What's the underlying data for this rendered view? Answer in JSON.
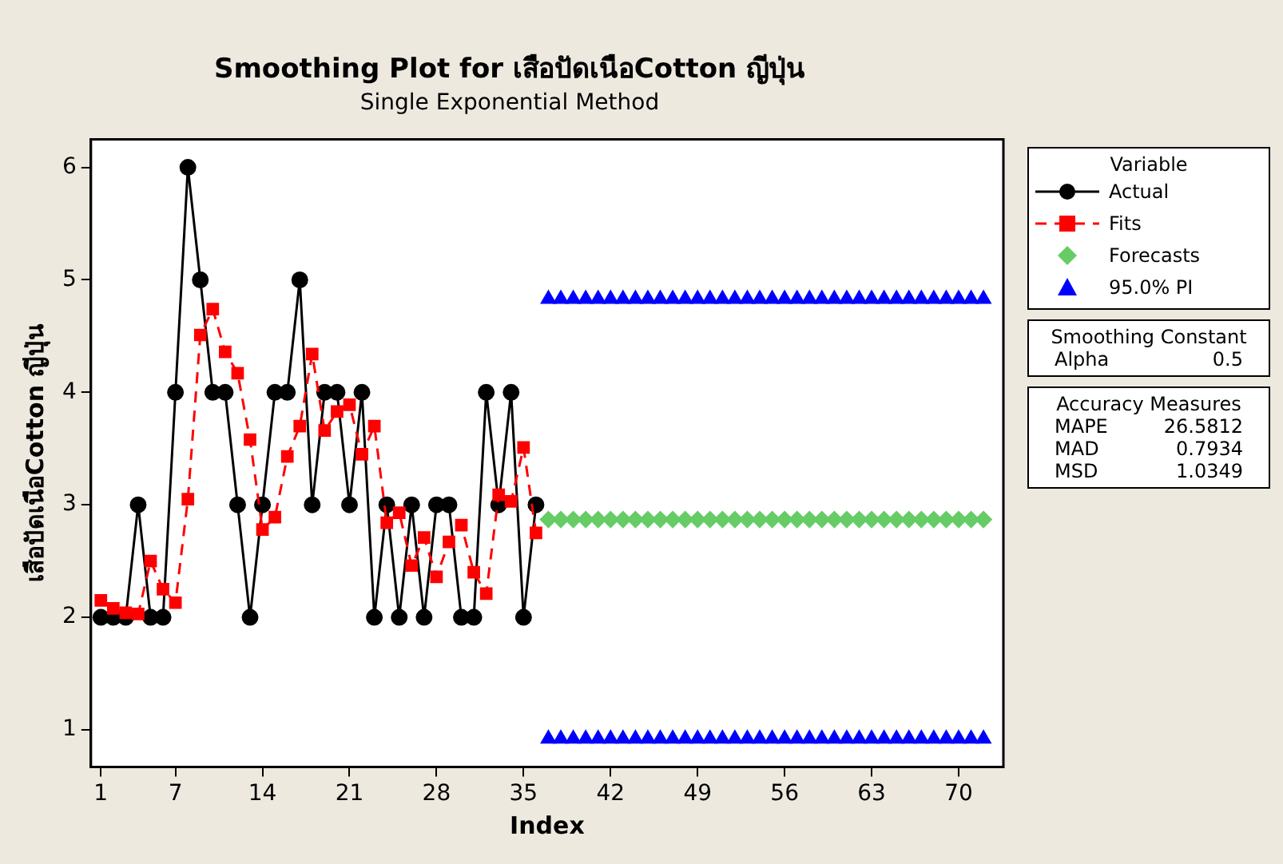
{
  "chart_data": {
    "type": "line",
    "title": "Smoothing Plot for เสือปัดเนือCotton ญีปุ่น",
    "subtitle": "Single Exponential Method",
    "xlabel": "Index",
    "ylabel": "เสือปัดเนือCotton ญีปุ่น",
    "legend_title": "Variable",
    "legend": "right",
    "grid": false,
    "xlim": [
      0.2,
      73.6
    ],
    "xticks": [
      1,
      7,
      14,
      21,
      28,
      35,
      42,
      49,
      56,
      63,
      70
    ],
    "ylim": [
      0.67,
      6.25
    ],
    "yticks": [
      1,
      2,
      3,
      4,
      5,
      6
    ],
    "annotations": [
      "Smoothing Constant\nAlpha\t0.5",
      "Accuracy Measures\nMAPE\t26.5812\nMAD\t0.7934\nMSD\t1.0349"
    ],
    "series": [
      {
        "name": "Actual",
        "color": "#000000",
        "marker": "circle",
        "line_style": "solid",
        "x": [
          1,
          2,
          3,
          4,
          5,
          6,
          7,
          8,
          9,
          10,
          11,
          12,
          13,
          14,
          15,
          16,
          17,
          18,
          19,
          20,
          21,
          22,
          23,
          24,
          25,
          26,
          27,
          28,
          29,
          30,
          31,
          32,
          33,
          34,
          35,
          36
        ],
        "values": [
          2,
          2,
          2,
          3,
          2,
          2,
          4,
          6,
          5,
          4,
          4,
          3,
          2,
          3,
          4,
          4,
          5,
          3,
          4,
          4,
          3,
          4,
          2,
          3,
          2,
          3,
          2,
          3,
          3,
          2,
          2,
          4,
          3,
          4,
          2,
          3
        ]
      },
      {
        "name": "Fits",
        "color": "#ff0000",
        "marker": "square",
        "line_style": "dashed",
        "x": [
          1,
          2,
          3,
          4,
          5,
          6,
          7,
          8,
          9,
          10,
          11,
          12,
          13,
          14,
          15,
          16,
          17,
          18,
          19,
          20,
          21,
          22,
          23,
          24,
          25,
          26,
          27,
          28,
          29,
          30,
          31,
          32,
          33,
          34,
          35,
          36
        ],
        "values": [
          2.15,
          2.08,
          2.04,
          2.03,
          2.5,
          2.25,
          2.13,
          3.05,
          4.51,
          4.74,
          4.36,
          4.17,
          3.58,
          2.78,
          2.89,
          3.43,
          3.7,
          4.34,
          3.66,
          3.83,
          3.89,
          3.45,
          3.7,
          2.84,
          2.93,
          2.46,
          2.71,
          2.36,
          2.67,
          2.82,
          2.4,
          2.21,
          3.09,
          3.03,
          3.51,
          2.75
        ]
      },
      {
        "name": "Forecasts",
        "type": "scatter",
        "color": "#66cc66",
        "marker": "diamond",
        "x": [
          37,
          38,
          39,
          40,
          41,
          42,
          43,
          44,
          45,
          46,
          47,
          48,
          49,
          50,
          51,
          52,
          53,
          54,
          55,
          56,
          57,
          58,
          59,
          60,
          61,
          62,
          63,
          64,
          65,
          66,
          67,
          68,
          69,
          70,
          71,
          72
        ],
        "values": [
          2.87,
          2.87,
          2.87,
          2.87,
          2.87,
          2.87,
          2.87,
          2.87,
          2.87,
          2.87,
          2.87,
          2.87,
          2.87,
          2.87,
          2.87,
          2.87,
          2.87,
          2.87,
          2.87,
          2.87,
          2.87,
          2.87,
          2.87,
          2.87,
          2.87,
          2.87,
          2.87,
          2.87,
          2.87,
          2.87,
          2.87,
          2.87,
          2.87,
          2.87,
          2.87,
          2.87
        ]
      },
      {
        "name": "95.0% PI",
        "type": "scatter",
        "color": "#0000ff",
        "marker": "triangle",
        "x": [
          37,
          38,
          39,
          40,
          41,
          42,
          43,
          44,
          45,
          46,
          47,
          48,
          49,
          50,
          51,
          52,
          53,
          54,
          55,
          56,
          57,
          58,
          59,
          60,
          61,
          62,
          63,
          64,
          65,
          66,
          67,
          68,
          69,
          70,
          71,
          72
        ],
        "values": [
          4.83,
          4.83,
          4.83,
          4.83,
          4.83,
          4.83,
          4.83,
          4.83,
          4.83,
          4.83,
          4.83,
          4.83,
          4.83,
          4.83,
          4.83,
          4.83,
          4.83,
          4.83,
          4.83,
          4.83,
          4.83,
          4.83,
          4.83,
          4.83,
          4.83,
          4.83,
          4.83,
          4.83,
          4.83,
          4.83,
          4.83,
          4.83,
          4.83,
          4.83,
          4.83,
          4.83
        ]
      },
      {
        "type": "scatter",
        "color": "#0000ff",
        "marker": "triangle",
        "x": [
          37,
          38,
          39,
          40,
          41,
          42,
          43,
          44,
          45,
          46,
          47,
          48,
          49,
          50,
          51,
          52,
          53,
          54,
          55,
          56,
          57,
          58,
          59,
          60,
          61,
          62,
          63,
          64,
          65,
          66,
          67,
          68,
          69,
          70,
          71,
          72
        ],
        "values": [
          0.92,
          0.92,
          0.92,
          0.92,
          0.92,
          0.92,
          0.92,
          0.92,
          0.92,
          0.92,
          0.92,
          0.92,
          0.92,
          0.92,
          0.92,
          0.92,
          0.92,
          0.92,
          0.92,
          0.92,
          0.92,
          0.92,
          0.92,
          0.92,
          0.92,
          0.92,
          0.92,
          0.92,
          0.92,
          0.92,
          0.92,
          0.92,
          0.92,
          0.92,
          0.92,
          0.92
        ]
      }
    ]
  }
}
